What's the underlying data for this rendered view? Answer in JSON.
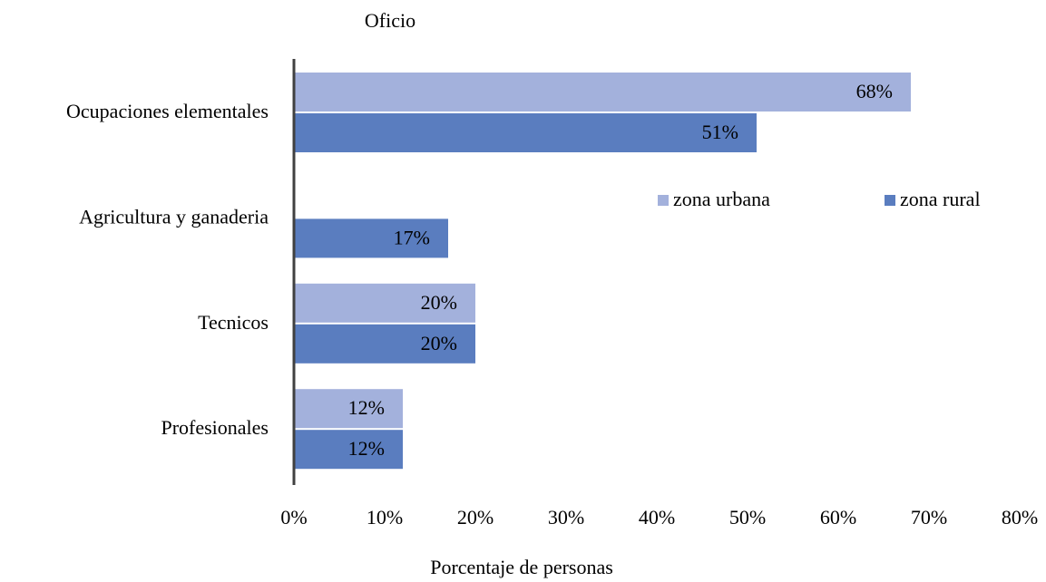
{
  "chart_data": {
    "type": "bar",
    "orientation": "horizontal",
    "title": "Oficio",
    "x_label": "Porcentaje de personas",
    "categories": [
      "Ocupaciones elementales",
      "Agricultura y ganaderia",
      "Tecnicos",
      "Profesionales"
    ],
    "series": [
      {
        "name": "zona urbana",
        "color": "#a3b1dc",
        "values": [
          68,
          null,
          20,
          12
        ],
        "value_labels": [
          "68%",
          null,
          "20%",
          "12%"
        ]
      },
      {
        "name": "zona rural",
        "color": "#5a7dbf",
        "values": [
          51,
          17,
          20,
          12
        ],
        "value_labels": [
          "51%",
          "17%",
          "20%",
          "12%"
        ]
      }
    ],
    "xlim": [
      0,
      80
    ],
    "xticks": [
      {
        "value": 0,
        "label": "0%"
      },
      {
        "value": 10,
        "label": "10%"
      },
      {
        "value": 20,
        "label": "20%"
      },
      {
        "value": 30,
        "label": "30%"
      },
      {
        "value": 40,
        "label": "40%"
      },
      {
        "value": 50,
        "label": "50%"
      },
      {
        "value": 60,
        "label": "60%"
      },
      {
        "value": 70,
        "label": "70%"
      },
      {
        "value": 80,
        "label": "80%"
      }
    ],
    "grid": false
  }
}
